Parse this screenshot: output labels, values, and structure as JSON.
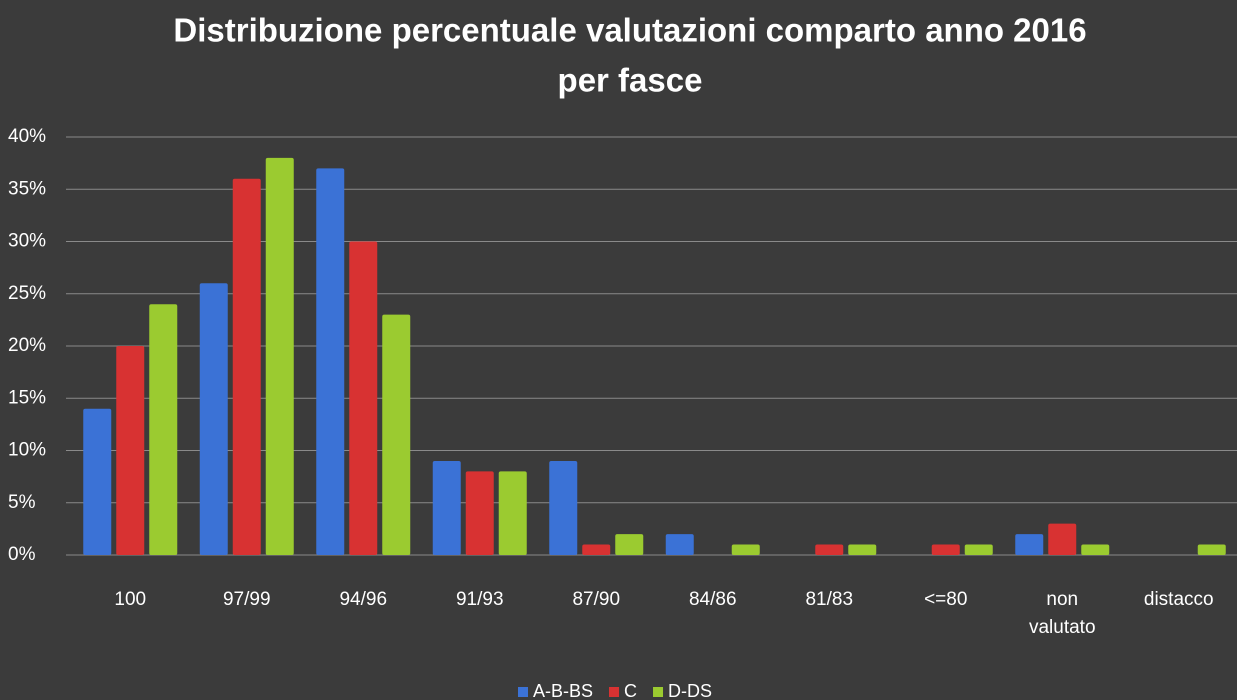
{
  "chart_data": {
    "type": "bar",
    "title": [
      "Distribuzione percentuale valutazioni comparto anno 2016",
      "per fasce"
    ],
    "categories": [
      "100",
      "97/99",
      "94/96",
      "91/93",
      "87/90",
      "84/86",
      "81/83",
      "<=80",
      "non valutato",
      "distacco"
    ],
    "series": [
      {
        "name": "A-B-BS",
        "color": "#3b72d6",
        "values": [
          14,
          26,
          37,
          9,
          9,
          2,
          0,
          0,
          2,
          0
        ]
      },
      {
        "name": "C",
        "color": "#d83232",
        "values": [
          20,
          36,
          30,
          8,
          1,
          0,
          1,
          1,
          3,
          0
        ]
      },
      {
        "name": "D-DS",
        "color": "#9bcb30",
        "values": [
          24,
          38,
          23,
          8,
          2,
          1,
          1,
          1,
          1,
          1
        ]
      }
    ],
    "ylim": [
      0,
      40
    ],
    "yticks": [
      {
        "value": 0,
        "label": "0%"
      },
      {
        "value": 5,
        "label": "5%"
      },
      {
        "value": 10,
        "label": "10%"
      },
      {
        "value": 15,
        "label": "15%"
      },
      {
        "value": 20,
        "label": "20%"
      },
      {
        "value": 25,
        "label": "25%"
      },
      {
        "value": 30,
        "label": "30%"
      },
      {
        "value": 35,
        "label": "35%"
      },
      {
        "value": 40,
        "label": "40%"
      }
    ],
    "grid": true,
    "legend": "bottom"
  }
}
